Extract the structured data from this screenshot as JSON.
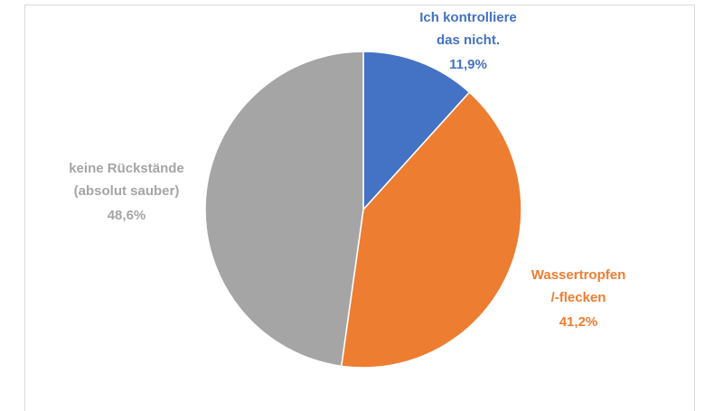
{
  "chart_data": {
    "type": "pie",
    "categories": [
      "Ich kontrolliere\ndas nicht.",
      "Wassertropfen\n/-flecken",
      "keine Rückstände\n(absolut sauber)"
    ],
    "values": [
      11.9,
      41.2,
      48.6
    ],
    "value_labels": [
      "11,9%",
      "41,2%",
      "48,6%"
    ],
    "colors": [
      "#4472c4",
      "#ed7d31",
      "#a5a5a5"
    ]
  }
}
